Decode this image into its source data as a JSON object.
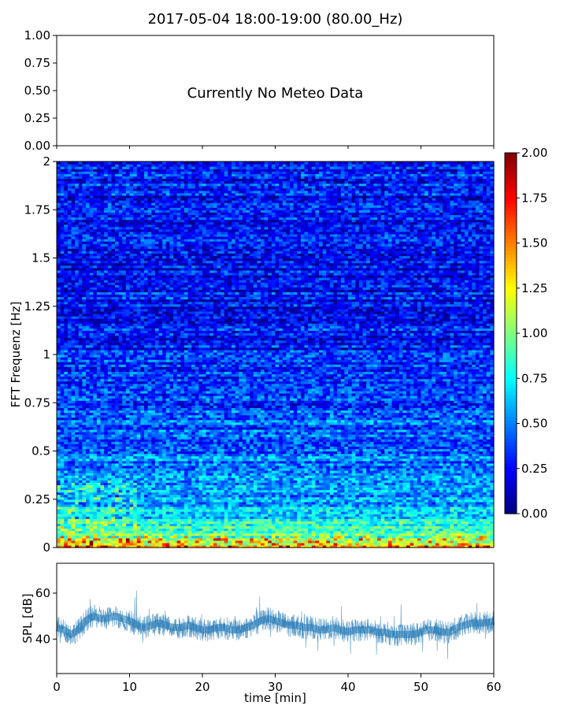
{
  "figure": {
    "title": "2017-05-04 18:00-19:00 (80.00_Hz)"
  },
  "chart_data": [
    {
      "type": "line",
      "panel": "meteo",
      "title": "",
      "annotation": "Currently No Meteo Data",
      "ylim": [
        0.0,
        1.0
      ],
      "yticks": [
        "0.00",
        "0.25",
        "0.50",
        "0.75",
        "1.00"
      ],
      "xlim": [
        0,
        60
      ],
      "series": []
    },
    {
      "type": "heatmap",
      "panel": "spectrogram",
      "ylabel": "FFT Frequenz [Hz]",
      "ylim": [
        0,
        2
      ],
      "yticks": [
        "0",
        "0.25",
        "0.5",
        "0.75",
        "1",
        "1.25",
        "1.5",
        "1.75",
        "2"
      ],
      "xlim": [
        0,
        60
      ],
      "colormap": "jet",
      "color_range": [
        0.0,
        2.0
      ],
      "colorbar_ticks": [
        "0.00",
        "0.25",
        "0.50",
        "0.75",
        "1.00",
        "1.25",
        "1.50",
        "1.75",
        "2.00"
      ],
      "typical_value_profile": [
        {
          "frequency_hz": 0.0,
          "value": 1.4
        },
        {
          "frequency_hz": 0.05,
          "value": 0.95
        },
        {
          "frequency_hz": 0.15,
          "value": 0.7
        },
        {
          "frequency_hz": 0.25,
          "value": 0.55
        },
        {
          "frequency_hz": 0.5,
          "value": 0.45
        },
        {
          "frequency_hz": 0.75,
          "value": 0.4
        },
        {
          "frequency_hz": 1.0,
          "value": 0.3
        },
        {
          "frequency_hz": 1.5,
          "value": 0.25
        },
        {
          "frequency_hz": 2.0,
          "value": 0.3
        }
      ]
    },
    {
      "type": "line",
      "panel": "spl",
      "ylabel": "SPL [dB]",
      "xlabel": "time [min]",
      "xlim": [
        0,
        60
      ],
      "ylim": [
        25,
        73
      ],
      "yticks": [
        "40",
        "60"
      ],
      "xticks": [
        "0",
        "10",
        "20",
        "30",
        "40",
        "50",
        "60"
      ],
      "line_color": "#1f77b4",
      "series": [
        {
          "x": [
            0,
            1,
            2,
            3,
            4,
            5,
            6,
            7,
            8,
            9,
            10,
            11,
            12,
            13,
            14,
            15,
            16,
            17,
            18,
            19,
            20,
            21,
            22,
            23,
            24,
            25,
            26,
            27,
            28,
            29,
            30,
            31,
            32,
            33,
            34,
            35,
            36,
            37,
            38,
            39,
            40,
            41,
            42,
            43,
            44,
            45,
            46,
            47,
            48,
            49,
            50,
            51,
            52,
            53,
            54,
            55,
            56,
            57,
            58,
            59,
            60
          ],
          "y": [
            45,
            44,
            42,
            44,
            48,
            50,
            49,
            49,
            50,
            49,
            48,
            46,
            45,
            46,
            47,
            46,
            45,
            45,
            46,
            45,
            44,
            44,
            45,
            45,
            44,
            44,
            45,
            46,
            48,
            49,
            48,
            47,
            46,
            46,
            45,
            45,
            44,
            44,
            45,
            44,
            43,
            44,
            44,
            44,
            43,
            43,
            42,
            42,
            42,
            42,
            43,
            44,
            44,
            43,
            43,
            45,
            46,
            47,
            47,
            47,
            48
          ]
        }
      ]
    }
  ]
}
